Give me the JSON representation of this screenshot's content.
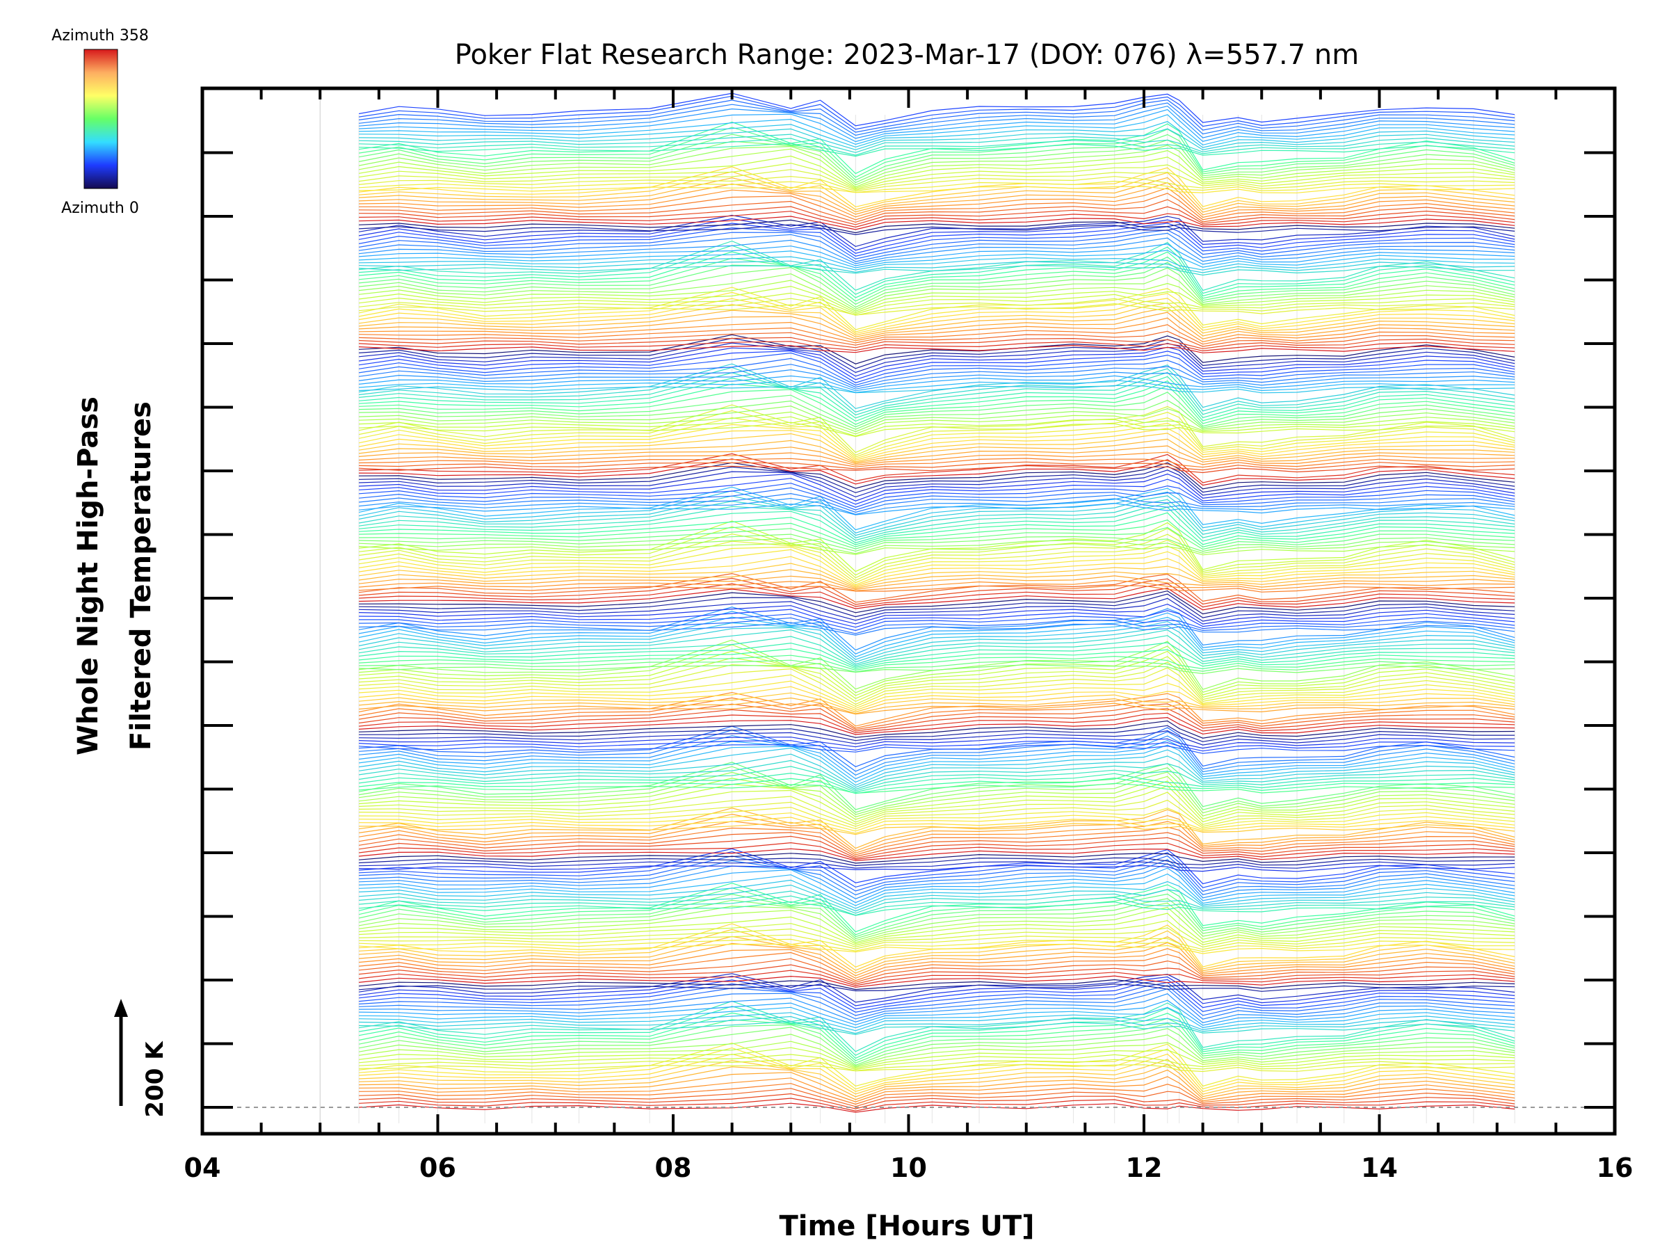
{
  "chart_data": {
    "type": "line",
    "title": "Poker Flat Research Range: 2023-Mar-17 (DOY: 076) λ=557.7 nm",
    "xlabel": "Time [Hours UT]",
    "ylabel_line1": "Whole Night High-Pass",
    "ylabel_line2": "Filtered Temperatures",
    "xlim": [
      4,
      16
    ],
    "x_ticks": [
      "04",
      "06",
      "08",
      "10",
      "12",
      "14",
      "16"
    ],
    "x_tick_values": [
      4,
      6,
      8,
      10,
      12,
      14,
      16
    ],
    "scale_bar_label": "200 K",
    "colorbar": {
      "top_label": "Azimuth 358",
      "bottom_label": "Azimuth 0",
      "colors": [
        "#d7191c",
        "#fdae61",
        "#ffff66",
        "#66ff66",
        "#33ddff",
        "#1e3cff",
        "#140a50"
      ]
    },
    "profile_times": [
      5.33,
      5.67,
      6.0,
      6.4,
      6.8,
      7.2,
      7.8,
      8.5,
      9.0,
      9.25,
      9.55,
      9.8,
      10.2,
      10.6,
      11.0,
      11.4,
      11.75,
      12.0,
      12.2,
      12.3,
      12.5,
      12.8,
      13.0,
      13.3,
      13.7,
      14.0,
      14.4,
      14.8,
      15.15
    ],
    "series": [
      {
        "values": [
          0,
          1,
          0,
          -1,
          0,
          0,
          0,
          2,
          6,
          1,
          -8,
          -2,
          0,
          1,
          2,
          4,
          5,
          1,
          0,
          -1,
          -6,
          -3,
          -4,
          -3,
          -1,
          1,
          2,
          1,
          -2
        ]
      },
      {
        "values": [
          0,
          2,
          0,
          -1,
          0,
          0,
          1,
          3,
          9,
          1,
          -12,
          -3,
          0,
          2,
          3,
          5,
          7,
          1,
          0,
          -2,
          -8,
          -4,
          -5,
          -4,
          -1,
          2,
          3,
          1,
          -2
        ]
      },
      {
        "values": [
          0,
          3,
          0,
          -1,
          0,
          0,
          1,
          4,
          11,
          2,
          -14,
          -3,
          1,
          3,
          4,
          6,
          8,
          2,
          1,
          -2,
          -10,
          -5,
          -6,
          -5,
          -2,
          2,
          4,
          2,
          -3
        ]
      },
      {
        "values": [
          0,
          4,
          0,
          -2,
          0,
          0,
          1,
          6,
          15,
          3,
          -16,
          -4,
          1,
          3,
          5,
          7,
          8,
          6,
          12,
          6,
          -12,
          -6,
          -7,
          -6,
          -2,
          3,
          5,
          2,
          -3
        ]
      },
      {
        "values": [
          1,
          5,
          1,
          -2,
          0,
          0,
          2,
          8,
          18,
          4,
          -18,
          -5,
          1,
          4,
          6,
          8,
          9,
          10,
          18,
          9,
          -14,
          -7,
          -8,
          -7,
          -2,
          3,
          6,
          3,
          -4
        ]
      },
      {
        "values": [
          1,
          6,
          1,
          -2,
          0,
          0,
          2,
          12,
          22,
          6,
          -20,
          -6,
          2,
          5,
          7,
          9,
          10,
          14,
          24,
          12,
          -16,
          -8,
          -9,
          -7,
          -3,
          4,
          7,
          3,
          -4
        ]
      },
      {
        "values": [
          1,
          7,
          1,
          -3,
          0,
          0,
          3,
          20,
          26,
          10,
          -22,
          -7,
          2,
          5,
          8,
          10,
          11,
          18,
          28,
          16,
          -17,
          -8,
          -10,
          -8,
          -3,
          4,
          8,
          4,
          -5
        ]
      },
      {
        "values": [
          1,
          8,
          2,
          -3,
          0,
          1,
          3,
          26,
          24,
          12,
          -23,
          -8,
          2,
          6,
          9,
          11,
          12,
          20,
          30,
          18,
          -18,
          -9,
          -11,
          -8,
          -3,
          5,
          9,
          4,
          -5
        ]
      },
      {
        "values": [
          1,
          9,
          2,
          -3,
          0,
          1,
          4,
          30,
          20,
          14,
          -24,
          -9,
          3,
          6,
          10,
          12,
          13,
          22,
          32,
          20,
          -19,
          -10,
          -12,
          -9,
          -4,
          5,
          10,
          5,
          -6
        ]
      },
      {
        "values": [
          2,
          10,
          2,
          -4,
          0,
          1,
          4,
          34,
          16,
          16,
          -25,
          -10,
          3,
          7,
          11,
          13,
          14,
          24,
          34,
          22,
          -20,
          -10,
          -13,
          -9,
          -4,
          6,
          11,
          5,
          -6
        ]
      },
      {
        "values": [
          2,
          10,
          2,
          -4,
          0,
          1,
          5,
          38,
          12,
          18,
          -26,
          -10,
          3,
          7,
          12,
          14,
          15,
          25,
          36,
          24,
          -21,
          -11,
          -14,
          -10,
          -4,
          6,
          12,
          6,
          -7
        ]
      },
      {
        "values": [
          2,
          11,
          3,
          -4,
          0,
          1,
          5,
          40,
          10,
          20,
          -26,
          -11,
          4,
          8,
          12,
          15,
          16,
          26,
          38,
          26,
          -22,
          -11,
          -14,
          -10,
          -5,
          6,
          13,
          6,
          -7
        ]
      }
    ]
  }
}
